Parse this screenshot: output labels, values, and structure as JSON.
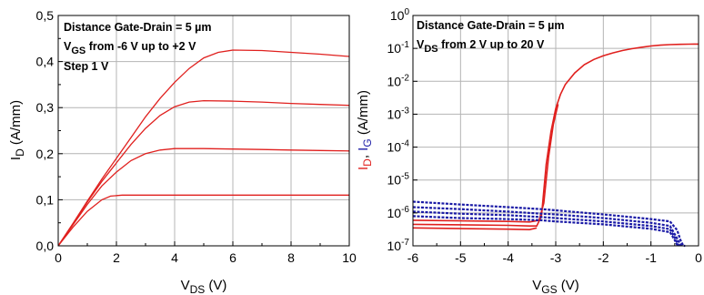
{
  "chart_data": [
    {
      "type": "line",
      "xlabel_main": "V",
      "xlabel_sub": "DS",
      "xlabel_unit": " (V)",
      "ylabel_main": "I",
      "ylabel_sub": "D",
      "ylabel_unit": " (A/mm)",
      "xlim": [
        0,
        10
      ],
      "ylim": [
        0,
        0.5
      ],
      "xticks": [
        "0",
        "2",
        "4",
        "6",
        "8",
        "10"
      ],
      "yticks": [
        "0,0",
        "0,1",
        "0,2",
        "0,3",
        "0,4",
        "0,5"
      ],
      "grid": true,
      "annotations": {
        "line1": "Distance Gate-Drain = 5 µm",
        "line2_main": "V",
        "line2_sub": "GS",
        "line2_rest": " from -6 V up to +2 V",
        "line3": "Step 1 V"
      },
      "line_color": "#e0201e",
      "series": [
        {
          "x": [
            0,
            0.5,
            1,
            1.5,
            1.8,
            2.2,
            3,
            4,
            5,
            6,
            7,
            8,
            9,
            10
          ],
          "values": [
            0,
            0.04,
            0.075,
            0.1,
            0.108,
            0.11,
            0.11,
            0.11,
            0.11,
            0.11,
            0.11,
            0.11,
            0.11,
            0.11
          ]
        },
        {
          "x": [
            0,
            0.5,
            1,
            1.5,
            2,
            2.5,
            3,
            3.5,
            4,
            5,
            6,
            7,
            8,
            9,
            10
          ],
          "values": [
            0,
            0.045,
            0.09,
            0.13,
            0.16,
            0.185,
            0.2,
            0.208,
            0.211,
            0.211,
            0.21,
            0.209,
            0.208,
            0.207,
            0.206
          ]
        },
        {
          "x": [
            0,
            0.5,
            1,
            1.5,
            2,
            2.5,
            3,
            3.5,
            4,
            4.5,
            5,
            6,
            7,
            8,
            9,
            10
          ],
          "values": [
            0,
            0.047,
            0.095,
            0.14,
            0.18,
            0.22,
            0.255,
            0.283,
            0.302,
            0.312,
            0.315,
            0.314,
            0.312,
            0.309,
            0.307,
            0.305
          ]
        },
        {
          "x": [
            0,
            0.5,
            1,
            1.5,
            2,
            2.5,
            3,
            3.5,
            4,
            4.5,
            5,
            5.5,
            6,
            7,
            8,
            9,
            10
          ],
          "values": [
            0,
            0.048,
            0.097,
            0.145,
            0.19,
            0.235,
            0.28,
            0.32,
            0.355,
            0.385,
            0.408,
            0.42,
            0.425,
            0.424,
            0.42,
            0.416,
            0.411
          ]
        }
      ]
    },
    {
      "type": "line",
      "yscale": "log",
      "xlabel_main": "V",
      "xlabel_sub": "GS",
      "xlabel_unit": " (V)",
      "ylabel_part1": "I",
      "ylabel_part1_sub": "D",
      "ylabel_sep": ", ",
      "ylabel_part2": "I",
      "ylabel_part2_sub": "G",
      "ylabel_unit": " (A/mm)",
      "ylabel_color1": "#e0201e",
      "ylabel_color2": "#1a1aa6",
      "xlim": [
        -6,
        0
      ],
      "ylim": [
        1e-07,
        1
      ],
      "xticks": [
        "-6",
        "-5",
        "-4",
        "-3",
        "-2",
        "-1",
        "0"
      ],
      "yticks_base": [
        "10",
        "10",
        "10",
        "10",
        "10",
        "10",
        "10",
        "10"
      ],
      "yticks_exp": [
        "-7",
        "-6",
        "-5",
        "-4",
        "-3",
        "-2",
        "-1",
        "0"
      ],
      "grid": true,
      "annotations": {
        "line1": "Distance Gate-Drain = 5 µm",
        "line2_main": "V",
        "line2_sub": "DS",
        "line2_rest": " from 2 V up to 20 V"
      },
      "series": [
        {
          "kind": "ID",
          "color": "#e0201e",
          "x": [
            -6,
            -4,
            -3.55,
            -3.4,
            -3.3,
            -3.2,
            -3.1,
            -3.0,
            -2.9,
            -2.8,
            -2.6,
            -2.4,
            -2.2,
            -2.0,
            -1.8,
            -1.6,
            -1.4,
            -1.2,
            -1.0,
            -0.8,
            -0.6,
            -0.4,
            -0.2,
            0
          ],
          "values": [
            4.5e-07,
            4.2e-07,
            4e-07,
            4e-07,
            8e-07,
            3e-05,
            0.0003,
            0.0015,
            0.004,
            0.008,
            0.018,
            0.032,
            0.046,
            0.06,
            0.073,
            0.086,
            0.098,
            0.108,
            0.118,
            0.125,
            0.13,
            0.133,
            0.134,
            0.135
          ]
        },
        {
          "kind": "ID",
          "color": "#e0201e",
          "x": [
            -6,
            -4,
            -3.55,
            -3.35,
            -3.25,
            -3.15,
            -3.05,
            -2.95
          ],
          "values": [
            6e-07,
            5.5e-07,
            5.3e-07,
            6e-07,
            2e-06,
            5e-05,
            0.0005,
            0.002
          ]
        },
        {
          "kind": "ID",
          "color": "#e0201e",
          "x": [
            -6,
            -4,
            -3.55,
            -3.4
          ],
          "values": [
            3.5e-07,
            3.2e-07,
            3.1e-07,
            3.5e-07
          ]
        },
        {
          "kind": "IG",
          "color": "#1a1aa6",
          "x": [
            -6,
            -5,
            -4,
            -3.3,
            -3,
            -2,
            -1,
            -0.6,
            -0.45,
            -0.38,
            -0.32,
            -0.28
          ],
          "values": [
            2.2e-06,
            1.8e-06,
            1.5e-06,
            1.3e-06,
            1.2e-06,
            9e-07,
            6.5e-07,
            5.5e-07,
            3e-07,
            1.5e-07,
            1e-07,
            1e-07
          ]
        },
        {
          "kind": "IG",
          "color": "#1a1aa6",
          "x": [
            -6,
            -5,
            -4,
            -3.3,
            -3,
            -2,
            -1,
            -0.6,
            -0.48,
            -0.4,
            -0.36
          ],
          "values": [
            1.5e-06,
            1.3e-06,
            1.1e-06,
            9.5e-07,
            9e-07,
            7e-07,
            5e-07,
            4e-07,
            2e-07,
            1.2e-07,
            1e-07
          ]
        },
        {
          "kind": "IG",
          "color": "#1a1aa6",
          "x": [
            -6,
            -5,
            -4,
            -3.3,
            -3,
            -2,
            -1,
            -0.6,
            -0.5,
            -0.43,
            -0.4
          ],
          "values": [
            1.1e-06,
            9.5e-07,
            8.5e-07,
            7.5e-07,
            7e-07,
            5.5e-07,
            4e-07,
            3.2e-07,
            1.8e-07,
            1.1e-07,
            1e-07
          ]
        },
        {
          "kind": "IG",
          "color": "#1a1aa6",
          "x": [
            -6,
            -5,
            -4,
            -3.3,
            -3,
            -2,
            -1,
            -0.6,
            -0.5,
            -0.44
          ],
          "values": [
            8e-07,
            7e-07,
            6.5e-07,
            6e-07,
            5.5e-07,
            4.5e-07,
            3.3e-07,
            2.6e-07,
            1.5e-07,
            1e-07
          ]
        }
      ]
    }
  ]
}
